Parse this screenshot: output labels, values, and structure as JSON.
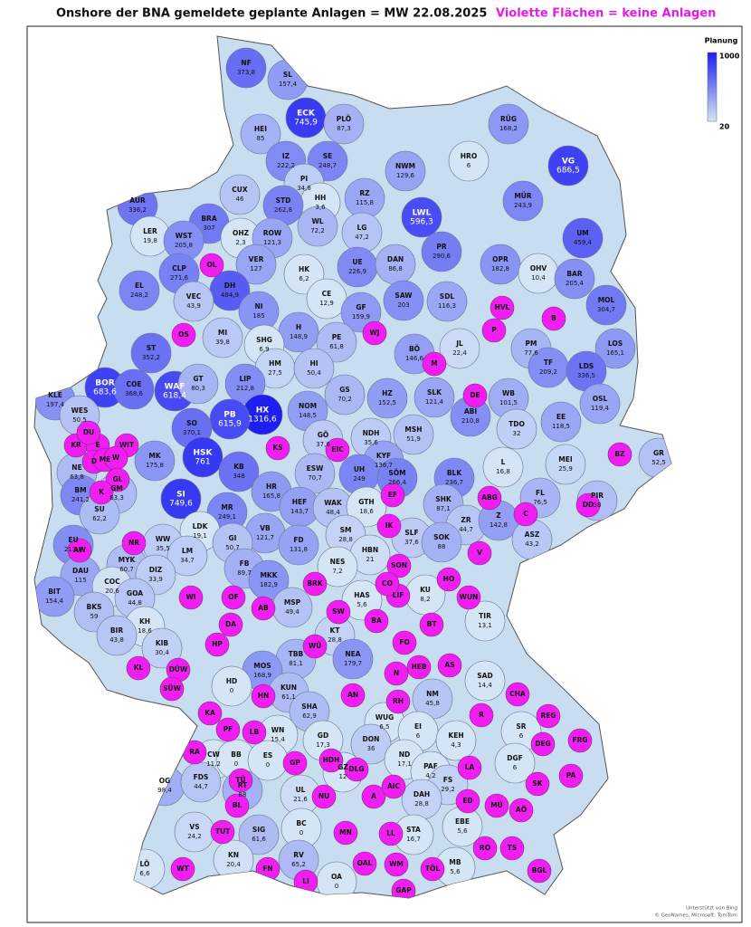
{
  "header": {
    "title": "Onshore der BNA gemeldete geplante Anlagen = MW  22.08.2025",
    "note": "Violette Flächen = keine Anlagen"
  },
  "legend": {
    "title": "Planung",
    "max": 1000,
    "min": 20,
    "color_max": "#1f1ff2",
    "color_min": "#d4e5f5",
    "no_plants_color": "#f01ef0"
  },
  "regions": {
    "codes": [
      "NF",
      "SL",
      "ECK",
      "HEI",
      "PLÖ",
      "RÜG",
      "IZ",
      "SE",
      "HRO",
      "VG",
      "NWM",
      "CUX",
      "PI",
      "HH",
      "RZ",
      "AUR",
      "STD",
      "LWL",
      "MÜR",
      "BRA",
      "LER",
      "WST",
      "OHZ",
      "ROW",
      "WL",
      "LG",
      "UM",
      "PR",
      "VER",
      "UE",
      "DAN",
      "OPR",
      "CLP",
      "DH",
      "EL",
      "HK",
      "OHV",
      "BAR",
      "VEC",
      "NI",
      "CE",
      "GF",
      "SAW",
      "SDL",
      "MOL",
      "H",
      "MI",
      "SHG",
      "PE",
      "PM",
      "LOS",
      "ST",
      "JL",
      "BÖ",
      "HM",
      "HI",
      "TF",
      "WAF",
      "GT",
      "LIP",
      "LDS",
      "BOR",
      "COE",
      "KLE",
      "GS",
      "HZ",
      "SLK",
      "WB",
      "OSL",
      "HX",
      "PB",
      "NOM",
      "WES",
      "ABI",
      "EE",
      "SO",
      "GÖ",
      "NDH",
      "MSH",
      "TDO",
      "KYF",
      "HSK",
      "MK",
      "NE",
      "ESW",
      "UH",
      "SÖM",
      "KB",
      "BLK",
      "L",
      "MEI",
      "GR",
      "BM",
      "GM",
      "SI",
      "HR",
      "HEF",
      "WAK",
      "GTH",
      "SHK",
      "MR",
      "SU",
      "ZR",
      "Z",
      "PIR",
      "FL",
      "EU",
      "LDK",
      "VB",
      "SM",
      "SLF",
      "SOK",
      "ASZ",
      "WW",
      "GI",
      "FD",
      "HBN",
      "LM",
      "FB",
      "NES",
      "MYK",
      "DAU",
      "DIZ",
      "COC",
      "GOA",
      "MKK",
      "KU",
      "BIT",
      "HAS",
      "MSP",
      "BKS",
      "KH",
      "TIR",
      "KT",
      "BIR",
      "KIB",
      "TBB",
      "NEA",
      "MOS",
      "HD",
      "SAD",
      "KUN",
      "NM",
      "SHA",
      "WUG",
      "WN",
      "EI",
      "GD",
      "SR",
      "DON",
      "KEH",
      "CW",
      "BB",
      "ES",
      "ND",
      "DGF",
      "PAF",
      "OG",
      "FDS",
      "RT",
      "GZ",
      "FS",
      "UL",
      "DAH",
      "BC",
      "SIG",
      "VS",
      "STA",
      "EBE",
      "KN",
      "RV",
      "MB",
      "LÖ",
      "OA"
    ],
    "values": [
      373.8,
      157.4,
      745.9,
      85,
      87.3,
      168.2,
      222.2,
      248.7,
      6,
      686.5,
      129.6,
      46,
      34.8,
      3.6,
      115.8,
      336.2,
      262.8,
      596.3,
      243.9,
      307,
      19.8,
      205.8,
      2.3,
      121.3,
      72.2,
      47.2,
      459.4,
      290.6,
      127,
      226.9,
      86.8,
      182.8,
      271.6,
      484.9,
      248.2,
      6.2,
      10.4,
      205.4,
      43.9,
      185,
      12.9,
      159.9,
      203,
      116.3,
      304.7,
      148.9,
      39.8,
      6.9,
      61.8,
      77.6,
      165.1,
      352.2,
      22.4,
      146.6,
      27.5,
      50.4,
      209.2,
      618.4,
      80.3,
      212.8,
      336.5,
      683.6,
      368.6,
      197.4,
      70.2,
      152.5,
      121.4,
      101.5,
      119.4,
      1316.6,
      615.9,
      148.5,
      50.5,
      210.8,
      118.5,
      370.1,
      37.6,
      35.6,
      51.9,
      32,
      136.7,
      761,
      175.8,
      63.8,
      70.7,
      249,
      266.4,
      348,
      236.7,
      16.8,
      25.9,
      52.5,
      241.2,
      63.3,
      749.6,
      165.8,
      143.7,
      48.4,
      18.6,
      87.1,
      249.1,
      62.2,
      44.7,
      142.8,
      58,
      76.5,
      213.3,
      19.1,
      121.7,
      28.8,
      37.6,
      88,
      43.2,
      35.5,
      50.7,
      131.8,
      21,
      34.7,
      89.7,
      7.2,
      60.7,
      115,
      33.9,
      20.6,
      44.8,
      182.9,
      8.2,
      154.4,
      5.6,
      49.4,
      59,
      18.6,
      13.1,
      28.8,
      43.8,
      30.4,
      81.1,
      179.7,
      168.9,
      0,
      14.4,
      61.1,
      45.8,
      62.9,
      6.5,
      15.4,
      6,
      17.3,
      6,
      36,
      4.3,
      11.2,
      0,
      0,
      17.1,
      6,
      4.2,
      98.4,
      44.7,
      88,
      12,
      29.2,
      21.6,
      28.8,
      0,
      61.6,
      24.2,
      16.7,
      5.6,
      20.4,
      65.2,
      5.6,
      6.6,
      0
    ],
    "value_labels": [
      "373,8",
      "157,4",
      "745,9",
      "85",
      "87,3",
      "168,2",
      "222,2",
      "248,7",
      "6",
      "686,5",
      "129,6",
      "46",
      "34,8",
      "3,6",
      "115,8",
      "336,2",
      "262,8",
      "596,3",
      "243,9",
      "307",
      "19,8",
      "205,8",
      "2,3",
      "121,3",
      "72,2",
      "47,2",
      "459,4",
      "290,6",
      "127",
      "226,9",
      "86,8",
      "182,8",
      "271,6",
      "484,9",
      "248,2",
      "6,2",
      "10,4",
      "205,4",
      "43,9",
      "185",
      "12,9",
      "159,9",
      "203",
      "116,3",
      "304,7",
      "148,9",
      "39,8",
      "6,9",
      "61,8",
      "77,6",
      "165,1",
      "352,2",
      "22,4",
      "146,6",
      "27,5",
      "50,4",
      "209,2",
      "618,4",
      "80,3",
      "212,8",
      "336,5",
      "683,6",
      "368,6",
      "197,4",
      "70,2",
      "152,5",
      "121,4",
      "101,5",
      "119,4",
      "1316,6",
      "615,9",
      "148,5",
      "50,5",
      "210,8",
      "118,5",
      "370,1",
      "37,6",
      "35,6",
      "51,9",
      "32",
      "136,7",
      "761",
      "175,8",
      "63,8",
      "70,7",
      "249",
      "266,4",
      "348",
      "236,7",
      "16,8",
      "25,9",
      "52,5",
      "241,2",
      "63,3",
      "749,6",
      "165,8",
      "143,7",
      "48,4",
      "18,6",
      "87,1",
      "249,1",
      "62,2",
      "44,7",
      "142,8",
      "58",
      "76,5",
      "213,3",
      "19,1",
      "121,7",
      "28,8",
      "37,6",
      "88",
      "43,2",
      "35,5",
      "50,7",
      "131,8",
      "21",
      "34,7",
      "89,7",
      "7,2",
      "60,7",
      "115",
      "33,9",
      "20,6",
      "44,8",
      "182,9",
      "8,2",
      "154,4",
      "5,6",
      "49,4",
      "59",
      "18,6",
      "13,1",
      "28,8",
      "43,8",
      "30,4",
      "81,1",
      "179,7",
      "168,9",
      "0",
      "14,4",
      "61,1",
      "45,8",
      "62,9",
      "6,5",
      "15,4",
      "6",
      "17,3",
      "6",
      "36",
      "4,3",
      "11,2",
      "0",
      "0",
      "17,1",
      "6",
      "4,2",
      "98,4",
      "44,7",
      "88",
      "12",
      "29,2",
      "21,6",
      "28,8",
      "0",
      "61,6",
      "24,2",
      "16,7",
      "5,6",
      "20,4",
      "65,2",
      "5,6",
      "6,6",
      "0"
    ]
  },
  "no_plant_regions": [
    "OL",
    "OS",
    "KR",
    "E",
    "DU",
    "WIT",
    "D",
    "ME",
    "W",
    "GL",
    "K",
    "AW",
    "NR",
    "WI",
    "OF",
    "AB",
    "DA",
    "HP",
    "KL",
    "DÜW",
    "SÜW",
    "KA",
    "PF",
    "LB",
    "RA",
    "TÜ",
    "BL",
    "TUT",
    "WT",
    "FN",
    "LI",
    "HN",
    "GP",
    "HDH",
    "DLG",
    "NU",
    "A",
    "AIC",
    "MN",
    "LL",
    "OAL",
    "WM",
    "GAP",
    "TÖL",
    "BRK",
    "SW",
    "LIF",
    "BA",
    "FO",
    "BT",
    "HO",
    "WUN",
    "SON",
    "CO",
    "WÜ",
    "N",
    "HEB",
    "AS",
    "AN",
    "RH",
    "LA",
    "SK",
    "PA",
    "DEG",
    "FRG",
    "REG",
    "CHA",
    "R",
    "ED",
    "MÜ",
    "AÖ",
    "RO",
    "TS",
    "BGL",
    "EF",
    "IK",
    "ABG",
    "C",
    "V",
    "BZ",
    "DD",
    "HVL",
    "B",
    "P",
    "WJ",
    "M",
    "DE",
    "KS",
    "EIC"
  ],
  "attribution": [
    "Unterstützt von Bing",
    "© GeoNames, Microsoft, TomTom"
  ]
}
